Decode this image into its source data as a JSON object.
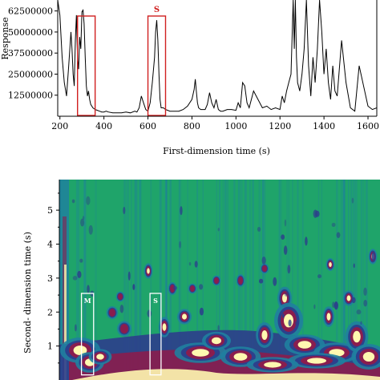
{
  "chart_data": [
    {
      "type": "line",
      "xlabel": "First-dimension time (s)",
      "ylabel": "Response",
      "xlim": [
        190,
        1640
      ],
      "ylim": [
        0,
        69000000
      ],
      "grid": false,
      "x_ticks": [
        200,
        400,
        600,
        800,
        1000,
        1200,
        1400,
        1600
      ],
      "x_tick_labels": [
        "200",
        "400",
        "600",
        "800",
        "1000",
        "1200",
        "1400",
        "1600"
      ],
      "y_ticks": [
        12500000,
        25000000,
        37500000,
        50000000,
        62500000
      ],
      "y_tick_labels": [
        "12500000",
        "25000000",
        "37500000",
        "50000000",
        "62500000"
      ],
      "series": [
        {
          "x": [
            190,
            200,
            210,
            220,
            230,
            240,
            250,
            255,
            260,
            265,
            270,
            275,
            280,
            285,
            290,
            295,
            300,
            305,
            310,
            315,
            320,
            325,
            330,
            335,
            340,
            350,
            360,
            370,
            380,
            390,
            400,
            410,
            420,
            440,
            460,
            480,
            500,
            520,
            540,
            550,
            560,
            570,
            580,
            590,
            600,
            610,
            620,
            630,
            635,
            640,
            645,
            650,
            655,
            660,
            670,
            680,
            690,
            700,
            720,
            740,
            760,
            780,
            800,
            810,
            815,
            820,
            825,
            830,
            840,
            860,
            870,
            880,
            890,
            900,
            910,
            920,
            930,
            940,
            960,
            980,
            1000,
            1010,
            1020,
            1030,
            1040,
            1050,
            1060,
            1080,
            1100,
            1120,
            1140,
            1160,
            1180,
            1200,
            1210,
            1220,
            1230,
            1240,
            1250,
            1260,
            1265,
            1270,
            1275,
            1280,
            1290,
            1300,
            1310,
            1320,
            1330,
            1340,
            1350,
            1360,
            1370,
            1380,
            1390,
            1400,
            1410,
            1420,
            1430,
            1440,
            1450,
            1460,
            1480,
            1500,
            1520,
            1540,
            1560,
            1580,
            1600,
            1620,
            1640
          ],
          "y": [
            69000000,
            60000000,
            35000000,
            20000000,
            12000000,
            30000000,
            50000000,
            40000000,
            25000000,
            18000000,
            45000000,
            60000000,
            35000000,
            28000000,
            47000000,
            40000000,
            62000000,
            63000000,
            55000000,
            35000000,
            18000000,
            12000000,
            15000000,
            10000000,
            7000000,
            5000000,
            4000000,
            3500000,
            3000000,
            2500000,
            2500000,
            3000000,
            2500000,
            2000000,
            2000000,
            2000000,
            2500000,
            2000000,
            3000000,
            2500000,
            5000000,
            12000000,
            8000000,
            4000000,
            3000000,
            8000000,
            20000000,
            35000000,
            50000000,
            57000000,
            45000000,
            25000000,
            10000000,
            5000000,
            5000000,
            4000000,
            3500000,
            3000000,
            3000000,
            3000000,
            4000000,
            6000000,
            10000000,
            16000000,
            22000000,
            15000000,
            8000000,
            5000000,
            4000000,
            4000000,
            7000000,
            14000000,
            8000000,
            5000000,
            10000000,
            4000000,
            3000000,
            3000000,
            4000000,
            4000000,
            3500000,
            8000000,
            5000000,
            20000000,
            18000000,
            8000000,
            5000000,
            15000000,
            10000000,
            5000000,
            6000000,
            4000000,
            5000000,
            4000000,
            12000000,
            8000000,
            15000000,
            20000000,
            25000000,
            69000000,
            40000000,
            69000000,
            35000000,
            20000000,
            15000000,
            25000000,
            40000000,
            69000000,
            30000000,
            12000000,
            35000000,
            20000000,
            40000000,
            69000000,
            50000000,
            25000000,
            40000000,
            20000000,
            10000000,
            30000000,
            15000000,
            12000000,
            45000000,
            20000000,
            5000000,
            3000000,
            30000000,
            18000000,
            6000000,
            4000000,
            5000000
          ]
        }
      ],
      "annotations": [
        {
          "label": "",
          "x_range": [
            280,
            360
          ]
        },
        {
          "label": "S",
          "x_range": [
            600,
            680
          ]
        }
      ]
    },
    {
      "type": "heatmap",
      "xlabel": "",
      "ylabel": "Second- dimension time (s)",
      "xlim": [
        190,
        1640
      ],
      "ylim": [
        0,
        5.9
      ],
      "grid": false,
      "y_ticks": [
        1,
        2,
        3,
        4,
        5
      ],
      "y_tick_labels": [
        "1",
        "2",
        "3",
        "4",
        "5"
      ],
      "colors": {
        "background": "#1fa46a",
        "low": "#1f7fa0",
        "mid": "#2c3e8c",
        "high": "#8a1d4e",
        "peak": "#fff8b0"
      },
      "annotations": [
        {
          "label": "M",
          "x_range": [
            290,
            345
          ],
          "y_range": [
            0.15,
            2.55
          ]
        },
        {
          "label": "S",
          "x_range": [
            600,
            650
          ],
          "y_range": [
            0.15,
            2.55
          ]
        }
      ]
    }
  ]
}
